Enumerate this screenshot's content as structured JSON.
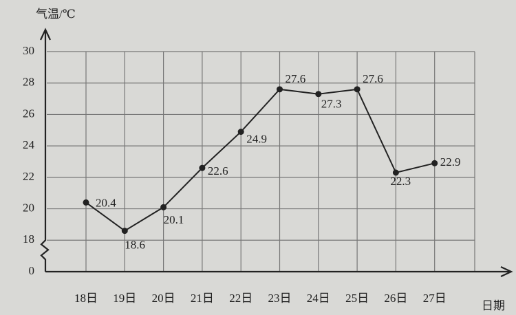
{
  "chart_data": {
    "type": "line",
    "y_label": "气温/℃",
    "x_label": "日期",
    "categories": [
      "18日",
      "19日",
      "20日",
      "21日",
      "22日",
      "23日",
      "24日",
      "25日",
      "26日",
      "27日"
    ],
    "values": [
      20.4,
      18.6,
      20.1,
      22.6,
      24.9,
      27.6,
      27.3,
      27.6,
      22.3,
      22.9
    ],
    "color": "#222222",
    "ylim": [
      0,
      30
    ],
    "yticks": [
      0,
      18,
      20,
      22,
      24,
      26,
      28,
      30
    ],
    "axis_break": [
      0,
      18
    ],
    "grid": true
  }
}
